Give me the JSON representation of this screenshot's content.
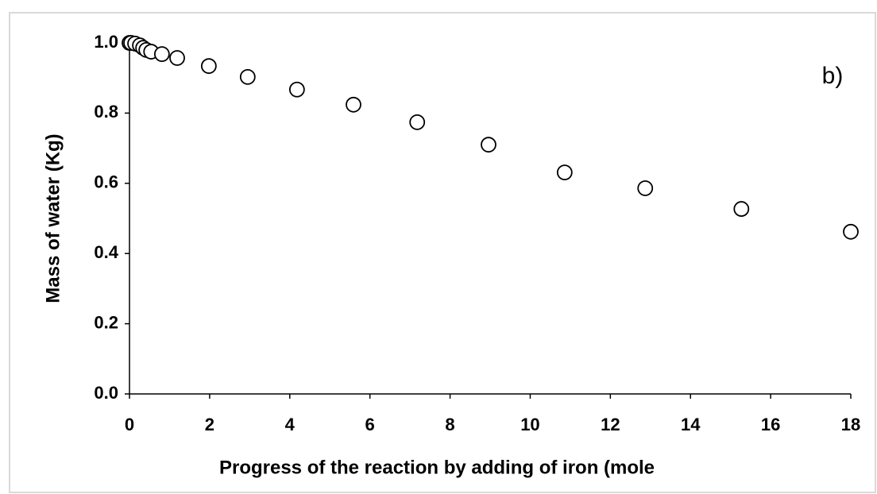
{
  "chart_data": {
    "type": "scatter",
    "xlabel": "Progress of the reaction by adding of iron (mole",
    "ylabel": "Mass of water (Kg)",
    "annotation": "b)",
    "x": [
      0,
      0.04,
      0.14,
      0.26,
      0.34,
      0.42,
      0.54,
      0.81,
      1.19,
      1.98,
      2.95,
      4.18,
      5.59,
      7.18,
      8.96,
      10.86,
      12.87,
      15.27,
      18.0
    ],
    "series": [
      {
        "color": "#000000",
        "values": [
          1.0,
          1.0,
          0.998,
          0.993,
          0.986,
          0.98,
          0.975,
          0.968,
          0.957,
          0.934,
          0.903,
          0.867,
          0.824,
          0.774,
          0.71,
          0.631,
          0.586,
          0.527,
          0.462
        ]
      }
    ],
    "xlim": [
      0,
      18
    ],
    "xticks": [
      0,
      2,
      4,
      6,
      8,
      10,
      12,
      14,
      16,
      18
    ],
    "ylim": [
      0,
      1
    ],
    "yticks": [
      {
        "value": 0,
        "label": "0.0"
      },
      0.2,
      0.4,
      0.6,
      0.8,
      {
        "value": 1,
        "label": "1.0"
      }
    ],
    "grid": false
  }
}
